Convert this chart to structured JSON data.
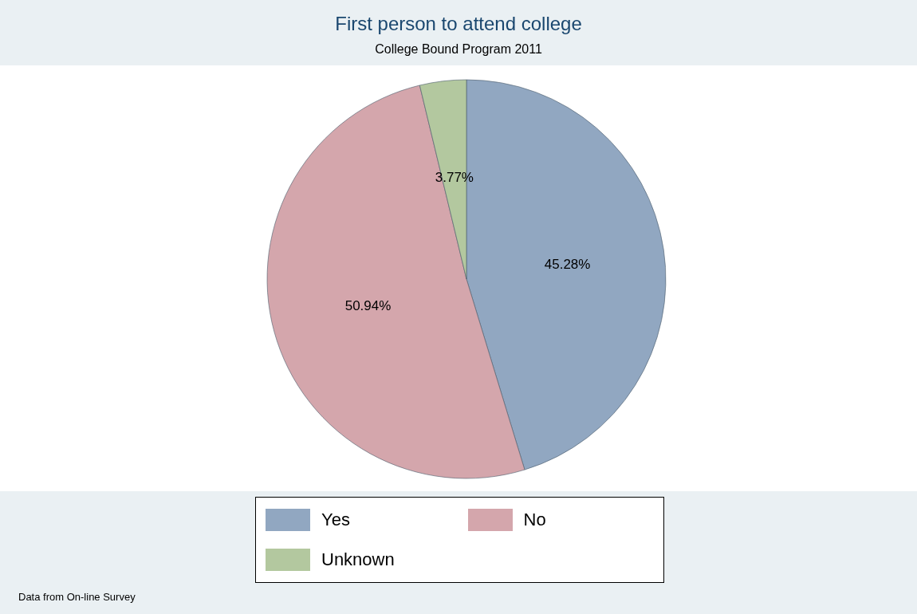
{
  "chart_data": {
    "type": "pie",
    "title": "First person to attend college",
    "subtitle": "College Bound Program 2011",
    "categories": [
      "Yes",
      "No",
      "Unknown"
    ],
    "values": [
      45.28,
      50.94,
      3.77
    ],
    "value_labels": [
      "45.28%",
      "50.94%",
      "3.77%"
    ],
    "colors": [
      "#91a7c1",
      "#d4a6ac",
      "#b3c89f"
    ],
    "legend": "bottom",
    "annotations": [
      "Data from On-line Survey"
    ]
  }
}
